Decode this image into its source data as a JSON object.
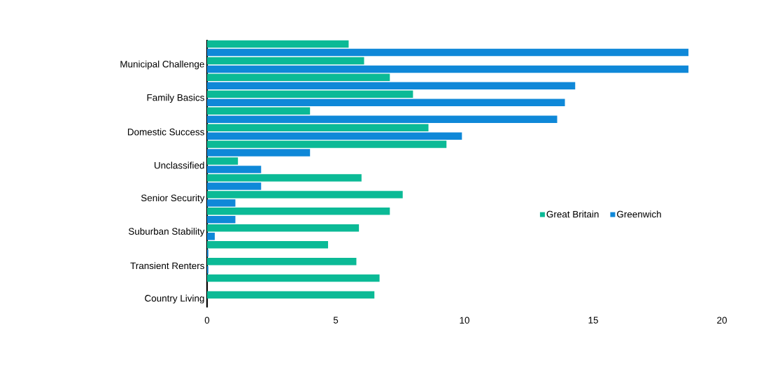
{
  "chart_data": {
    "type": "bar",
    "orientation": "horizontal",
    "categories": [
      null,
      "Municipal Challenge",
      null,
      "Family Basics",
      null,
      "Domestic Success",
      null,
      "Unclassified",
      null,
      "Senior Security",
      null,
      "Suburban Stability",
      null,
      "Transient Renters",
      null,
      "Country Living"
    ],
    "series": [
      {
        "name": "Great Britain",
        "color": "#0bba96",
        "values": [
          5.5,
          6.1,
          7.1,
          8.0,
          4.0,
          8.6,
          9.3,
          1.2,
          6.0,
          7.6,
          7.1,
          5.9,
          4.7,
          5.8,
          6.7,
          6.5
        ]
      },
      {
        "name": "Greenwich",
        "color": "#0f88d8",
        "values": [
          18.7,
          18.7,
          14.3,
          13.9,
          13.6,
          9.9,
          4.0,
          2.1,
          2.1,
          1.1,
          1.1,
          0.3,
          0.05,
          0.05,
          null,
          null
        ]
      }
    ],
    "xlim": [
      0,
      20
    ],
    "xticks": [
      0,
      5,
      10,
      15,
      20
    ],
    "grid": false,
    "legend": "right"
  }
}
